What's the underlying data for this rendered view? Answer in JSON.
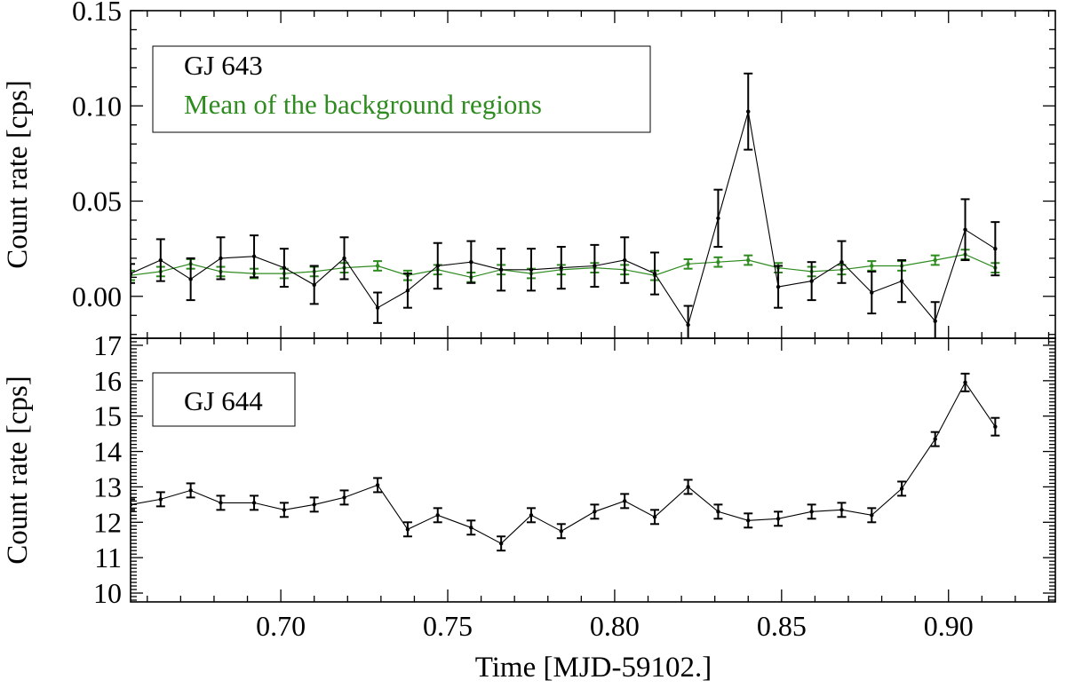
{
  "colors": {
    "target": "#000000",
    "background": "#2e8b1f",
    "axis": "#000000"
  },
  "chart_data": {
    "type": "line",
    "xlabel": "Time [MJD-59102.]",
    "xlim": [
      0.655,
      0.932
    ],
    "xticks": [
      "0.70",
      "0.75",
      "0.80",
      "0.85",
      "0.90"
    ],
    "panels": [
      {
        "ylabel": "Count rate [cps]",
        "ylim": [
          -0.022,
          0.15
        ],
        "yticks": [
          "0.00",
          "0.05",
          "0.10",
          "0.15"
        ],
        "legend": {
          "position": "top-left",
          "entries": [
            "GJ 643",
            "Mean of the background regions"
          ]
        },
        "series": [
          {
            "name": "GJ 643",
            "color": "#000000",
            "x": [
              0.655,
              0.664,
              0.673,
              0.682,
              0.692,
              0.701,
              0.71,
              0.719,
              0.729,
              0.738,
              0.747,
              0.757,
              0.766,
              0.775,
              0.784,
              0.794,
              0.803,
              0.812,
              0.822,
              0.831,
              0.84,
              0.849,
              0.859,
              0.868,
              0.877,
              0.886,
              0.896,
              0.905,
              0.914
            ],
            "y": [
              0.012,
              0.019,
              0.009,
              0.02,
              0.021,
              0.015,
              0.006,
              0.02,
              -0.006,
              0.003,
              0.016,
              0.018,
              0.014,
              0.014,
              0.015,
              0.016,
              0.019,
              0.012,
              -0.015,
              0.041,
              0.097,
              0.005,
              0.008,
              0.018,
              0.002,
              0.008,
              -0.013,
              0.035,
              0.025
            ],
            "err": [
              0.005,
              0.011,
              0.011,
              0.011,
              0.011,
              0.01,
              0.01,
              0.011,
              0.008,
              0.009,
              0.012,
              0.011,
              0.011,
              0.011,
              0.011,
              0.011,
              0.012,
              0.011,
              0.01,
              0.015,
              0.02,
              0.011,
              0.01,
              0.011,
              0.011,
              0.011,
              0.01,
              0.016,
              0.014
            ]
          },
          {
            "name": "Mean of the background regions",
            "color": "#2e8b1f",
            "x": [
              0.655,
              0.664,
              0.673,
              0.682,
              0.692,
              0.701,
              0.71,
              0.719,
              0.729,
              0.738,
              0.747,
              0.757,
              0.766,
              0.775,
              0.784,
              0.794,
              0.803,
              0.812,
              0.822,
              0.831,
              0.84,
              0.849,
              0.859,
              0.868,
              0.877,
              0.886,
              0.896,
              0.905,
              0.914
            ],
            "y": [
              0.011,
              0.013,
              0.017,
              0.013,
              0.012,
              0.012,
              0.013,
              0.015,
              0.016,
              0.011,
              0.014,
              0.01,
              0.014,
              0.012,
              0.014,
              0.015,
              0.014,
              0.011,
              0.017,
              0.018,
              0.019,
              0.015,
              0.013,
              0.014,
              0.016,
              0.016,
              0.019,
              0.022,
              0.015
            ]
          }
        ]
      },
      {
        "ylabel": "Count rate [cps]",
        "ylim": [
          9.75,
          17.2
        ],
        "yticks": [
          "10",
          "11",
          "12",
          "13",
          "14",
          "15",
          "16",
          "17"
        ],
        "legend": {
          "position": "top-left",
          "entries": [
            "GJ 644"
          ]
        },
        "series": [
          {
            "name": "GJ 644",
            "color": "#000000",
            "x": [
              0.655,
              0.664,
              0.673,
              0.682,
              0.692,
              0.701,
              0.71,
              0.719,
              0.729,
              0.738,
              0.747,
              0.757,
              0.766,
              0.775,
              0.784,
              0.794,
              0.803,
              0.812,
              0.822,
              0.831,
              0.84,
              0.849,
              0.859,
              0.868,
              0.877,
              0.886,
              0.896,
              0.905,
              0.914
            ],
            "y": [
              12.5,
              12.65,
              12.9,
              12.55,
              12.55,
              12.35,
              12.5,
              12.7,
              13.05,
              11.8,
              12.2,
              11.85,
              11.4,
              12.2,
              11.75,
              12.3,
              12.6,
              12.15,
              13.0,
              12.3,
              12.05,
              12.1,
              12.3,
              12.35,
              12.2,
              12.95,
              14.35,
              15.95,
              14.7
            ],
            "err": [
              0.15,
              0.2,
              0.2,
              0.2,
              0.2,
              0.2,
              0.2,
              0.2,
              0.2,
              0.2,
              0.2,
              0.2,
              0.2,
              0.2,
              0.2,
              0.2,
              0.2,
              0.2,
              0.2,
              0.2,
              0.2,
              0.2,
              0.2,
              0.2,
              0.2,
              0.2,
              0.2,
              0.25,
              0.25
            ]
          }
        ]
      }
    ]
  }
}
